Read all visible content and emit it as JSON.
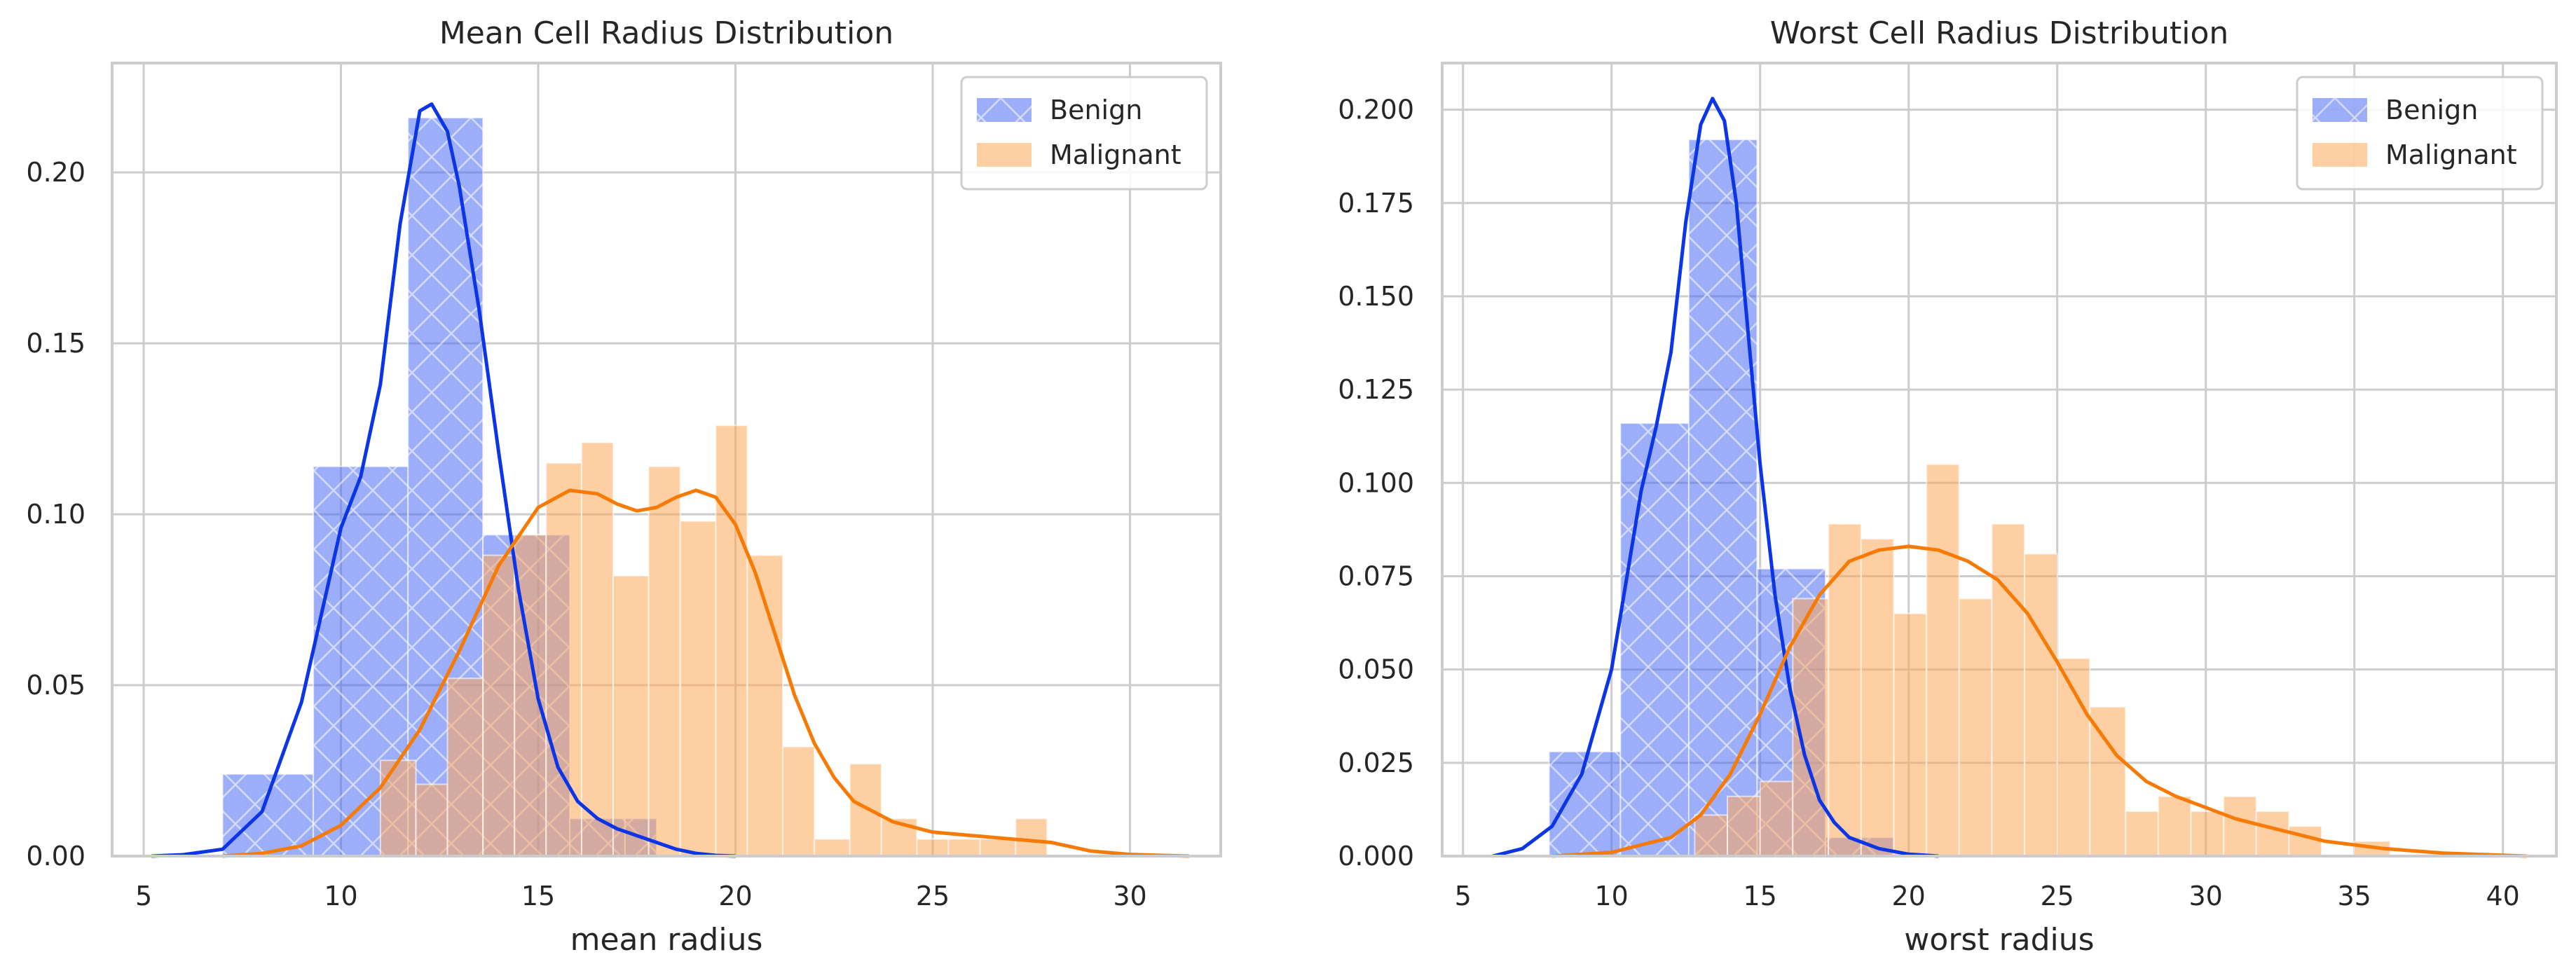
{
  "colors": {
    "benign": "#4a6cf5",
    "benign_line": "#0b35e6",
    "malignant": "#ffa75a",
    "malignant_line": "#f77a05",
    "grid": "#cccccc",
    "frame": "#cccccc",
    "background": "#ffffff"
  },
  "chart_data": [
    {
      "type": "bar",
      "subtype": "histogram-with-kde",
      "title": "Mean Cell Radius Distribution",
      "xlabel": "mean radius",
      "ylabel": "",
      "xlim": [
        4.2,
        32.3
      ],
      "ylim": [
        0,
        0.232
      ],
      "xticks": [
        5,
        10,
        15,
        20,
        25,
        30
      ],
      "yticks": [
        0.0,
        0.05,
        0.1,
        0.15,
        0.2
      ],
      "ytick_labels": [
        "0.00",
        "0.05",
        "0.10",
        "0.15",
        "0.20"
      ],
      "grid": true,
      "legend_position": "top-right",
      "series": [
        {
          "name": "Benign",
          "key": "benign",
          "hatch": "x",
          "bins": [
            {
              "x0": 7.0,
              "x1": 9.3,
              "density": 0.024
            },
            {
              "x0": 9.3,
              "x1": 11.7,
              "density": 0.114
            },
            {
              "x0": 11.7,
              "x1": 13.6,
              "density": 0.216
            },
            {
              "x0": 13.6,
              "x1": 15.8,
              "density": 0.094
            },
            {
              "x0": 15.8,
              "x1": 17.2,
              "density": 0.011
            },
            {
              "x0": 17.2,
              "x1": 18.0,
              "density": 0.011
            }
          ],
          "kde": [
            [
              5.2,
              0.0
            ],
            [
              6.0,
              0.0004
            ],
            [
              7.0,
              0.002
            ],
            [
              8.0,
              0.013
            ],
            [
              9.0,
              0.045
            ],
            [
              10.0,
              0.096
            ],
            [
              10.5,
              0.111
            ],
            [
              11.0,
              0.138
            ],
            [
              11.5,
              0.185
            ],
            [
              12.0,
              0.218
            ],
            [
              12.3,
              0.22
            ],
            [
              12.7,
              0.212
            ],
            [
              13.0,
              0.196
            ],
            [
              13.5,
              0.16
            ],
            [
              14.0,
              0.118
            ],
            [
              14.5,
              0.078
            ],
            [
              15.0,
              0.046
            ],
            [
              15.5,
              0.026
            ],
            [
              16.0,
              0.016
            ],
            [
              16.5,
              0.011
            ],
            [
              17.0,
              0.008
            ],
            [
              17.5,
              0.006
            ],
            [
              18.0,
              0.004
            ],
            [
              18.5,
              0.002
            ],
            [
              19.0,
              0.0008
            ],
            [
              19.5,
              0.0002
            ],
            [
              20.0,
              0.0
            ]
          ]
        },
        {
          "name": "Malignant",
          "key": "malignant",
          "hatch": "",
          "bins": [
            {
              "x0": 11.0,
              "x1": 11.9,
              "density": 0.028
            },
            {
              "x0": 11.9,
              "x1": 12.7,
              "density": 0.021
            },
            {
              "x0": 12.7,
              "x1": 13.6,
              "density": 0.052
            },
            {
              "x0": 13.6,
              "x1": 14.4,
              "density": 0.088
            },
            {
              "x0": 14.4,
              "x1": 15.2,
              "density": 0.094
            },
            {
              "x0": 15.2,
              "x1": 16.1,
              "density": 0.115
            },
            {
              "x0": 16.1,
              "x1": 16.9,
              "density": 0.121
            },
            {
              "x0": 16.9,
              "x1": 17.8,
              "density": 0.082
            },
            {
              "x0": 17.8,
              "x1": 18.6,
              "density": 0.114
            },
            {
              "x0": 18.6,
              "x1": 19.5,
              "density": 0.098
            },
            {
              "x0": 19.5,
              "x1": 20.3,
              "density": 0.126
            },
            {
              "x0": 20.3,
              "x1": 21.2,
              "density": 0.088
            },
            {
              "x0": 21.2,
              "x1": 22.0,
              "density": 0.032
            },
            {
              "x0": 22.0,
              "x1": 22.9,
              "density": 0.005
            },
            {
              "x0": 22.9,
              "x1": 23.7,
              "density": 0.027
            },
            {
              "x0": 23.7,
              "x1": 24.6,
              "density": 0.011
            },
            {
              "x0": 24.6,
              "x1": 25.4,
              "density": 0.005
            },
            {
              "x0": 25.4,
              "x1": 26.2,
              "density": 0.005
            },
            {
              "x0": 26.2,
              "x1": 27.1,
              "density": 0.005
            },
            {
              "x0": 27.1,
              "x1": 27.9,
              "density": 0.011
            }
          ],
          "kde": [
            [
              7.0,
              0.0
            ],
            [
              8.0,
              0.0008
            ],
            [
              9.0,
              0.003
            ],
            [
              10.0,
              0.009
            ],
            [
              11.0,
              0.02
            ],
            [
              12.0,
              0.037
            ],
            [
              13.0,
              0.06
            ],
            [
              14.0,
              0.085
            ],
            [
              15.0,
              0.102
            ],
            [
              15.8,
              0.107
            ],
            [
              16.5,
              0.106
            ],
            [
              17.0,
              0.103
            ],
            [
              17.5,
              0.101
            ],
            [
              18.0,
              0.102
            ],
            [
              18.5,
              0.105
            ],
            [
              19.0,
              0.107
            ],
            [
              19.5,
              0.105
            ],
            [
              20.0,
              0.097
            ],
            [
              20.5,
              0.083
            ],
            [
              21.0,
              0.065
            ],
            [
              21.5,
              0.047
            ],
            [
              22.0,
              0.033
            ],
            [
              22.5,
              0.023
            ],
            [
              23.0,
              0.016
            ],
            [
              24.0,
              0.01
            ],
            [
              25.0,
              0.007
            ],
            [
              26.0,
              0.006
            ],
            [
              27.0,
              0.005
            ],
            [
              28.0,
              0.004
            ],
            [
              29.0,
              0.0015
            ],
            [
              30.0,
              0.0005
            ],
            [
              31.5,
              0.0
            ]
          ]
        }
      ]
    },
    {
      "type": "bar",
      "subtype": "histogram-with-kde",
      "title": "Worst Cell Radius Distribution",
      "xlabel": "worst radius",
      "ylabel": "",
      "xlim": [
        4.3,
        41.8
      ],
      "ylim": [
        0,
        0.2125
      ],
      "xticks": [
        5,
        10,
        15,
        20,
        25,
        30,
        35,
        40
      ],
      "yticks": [
        0.0,
        0.025,
        0.05,
        0.075,
        0.1,
        0.125,
        0.15,
        0.175,
        0.2
      ],
      "ytick_labels": [
        "0.000",
        "0.025",
        "0.050",
        "0.075",
        "0.100",
        "0.125",
        "0.150",
        "0.175",
        "0.200"
      ],
      "grid": true,
      "legend_position": "top-right",
      "series": [
        {
          "name": "Benign",
          "key": "benign",
          "hatch": "x",
          "bins": [
            {
              "x0": 7.9,
              "x1": 10.3,
              "density": 0.028
            },
            {
              "x0": 10.3,
              "x1": 12.6,
              "density": 0.116
            },
            {
              "x0": 12.6,
              "x1": 14.9,
              "density": 0.192
            },
            {
              "x0": 14.9,
              "x1": 17.2,
              "density": 0.077
            },
            {
              "x0": 17.2,
              "x1": 19.5,
              "density": 0.005
            }
          ],
          "kde": [
            [
              6.0,
              0.0
            ],
            [
              7.0,
              0.002
            ],
            [
              8.0,
              0.008
            ],
            [
              9.0,
              0.022
            ],
            [
              10.0,
              0.05
            ],
            [
              11.0,
              0.098
            ],
            [
              11.5,
              0.115
            ],
            [
              12.0,
              0.135
            ],
            [
              12.5,
              0.17
            ],
            [
              13.0,
              0.196
            ],
            [
              13.4,
              0.203
            ],
            [
              13.8,
              0.197
            ],
            [
              14.2,
              0.175
            ],
            [
              14.6,
              0.14
            ],
            [
              15.0,
              0.105
            ],
            [
              15.5,
              0.07
            ],
            [
              16.0,
              0.045
            ],
            [
              16.5,
              0.027
            ],
            [
              17.0,
              0.015
            ],
            [
              17.5,
              0.009
            ],
            [
              18.0,
              0.005
            ],
            [
              19.0,
              0.002
            ],
            [
              20.0,
              0.0005
            ],
            [
              21.0,
              0.0
            ]
          ]
        },
        {
          "name": "Malignant",
          "key": "malignant",
          "hatch": "",
          "bins": [
            {
              "x0": 12.8,
              "x1": 13.9,
              "density": 0.011
            },
            {
              "x0": 13.9,
              "x1": 15.0,
              "density": 0.016
            },
            {
              "x0": 15.0,
              "x1": 16.1,
              "density": 0.02
            },
            {
              "x0": 16.1,
              "x1": 17.3,
              "density": 0.069
            },
            {
              "x0": 17.3,
              "x1": 18.4,
              "density": 0.089
            },
            {
              "x0": 18.4,
              "x1": 19.5,
              "density": 0.085
            },
            {
              "x0": 19.5,
              "x1": 20.6,
              "density": 0.065
            },
            {
              "x0": 20.6,
              "x1": 21.7,
              "density": 0.105
            },
            {
              "x0": 21.7,
              "x1": 22.8,
              "density": 0.069
            },
            {
              "x0": 22.8,
              "x1": 23.9,
              "density": 0.089
            },
            {
              "x0": 23.9,
              "x1": 25.0,
              "density": 0.081
            },
            {
              "x0": 25.0,
              "x1": 26.1,
              "density": 0.053
            },
            {
              "x0": 26.1,
              "x1": 27.3,
              "density": 0.04
            },
            {
              "x0": 27.3,
              "x1": 28.4,
              "density": 0.012
            },
            {
              "x0": 28.4,
              "x1": 29.5,
              "density": 0.016
            },
            {
              "x0": 29.5,
              "x1": 30.6,
              "density": 0.012
            },
            {
              "x0": 30.6,
              "x1": 31.7,
              "density": 0.016
            },
            {
              "x0": 31.7,
              "x1": 32.8,
              "density": 0.012
            },
            {
              "x0": 32.8,
              "x1": 33.9,
              "density": 0.008
            },
            {
              "x0": 33.9,
              "x1": 35.0,
              "density": 0.0
            },
            {
              "x0": 35.0,
              "x1": 36.2,
              "density": 0.004
            }
          ],
          "kde": [
            [
              8.0,
              0.0
            ],
            [
              10.0,
              0.001
            ],
            [
              12.0,
              0.005
            ],
            [
              13.0,
              0.011
            ],
            [
              14.0,
              0.022
            ],
            [
              15.0,
              0.038
            ],
            [
              16.0,
              0.056
            ],
            [
              17.0,
              0.07
            ],
            [
              18.0,
              0.079
            ],
            [
              19.0,
              0.082
            ],
            [
              20.0,
              0.083
            ],
            [
              21.0,
              0.082
            ],
            [
              22.0,
              0.079
            ],
            [
              23.0,
              0.074
            ],
            [
              24.0,
              0.065
            ],
            [
              25.0,
              0.052
            ],
            [
              26.0,
              0.038
            ],
            [
              27.0,
              0.027
            ],
            [
              28.0,
              0.02
            ],
            [
              29.0,
              0.016
            ],
            [
              30.0,
              0.013
            ],
            [
              31.0,
              0.01
            ],
            [
              32.0,
              0.008
            ],
            [
              33.0,
              0.006
            ],
            [
              34.0,
              0.004
            ],
            [
              35.0,
              0.003
            ],
            [
              36.0,
              0.002
            ],
            [
              38.0,
              0.0008
            ],
            [
              40.8,
              0.0
            ]
          ]
        }
      ]
    }
  ]
}
